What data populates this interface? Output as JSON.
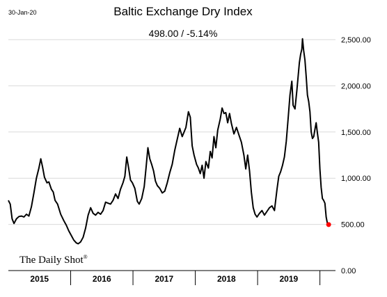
{
  "date_stamp": "30-Jan-20",
  "brand": "The Daily Shot",
  "brand_mark": "®",
  "colors": {
    "line": "#000000",
    "last_point": "#ff0000",
    "grid": "#d9d9d9"
  },
  "chart_data": {
    "type": "line",
    "title": "Baltic Exchange Dry Index",
    "subtitle": "498.00  /  -5.14%",
    "xlabel": "",
    "ylabel": "",
    "ylim": [
      0,
      2500
    ],
    "yticks": [
      "0.00",
      "500.00",
      "1,000.00",
      "1,500.00",
      "2,000.00",
      "2,500.00"
    ],
    "ytick_values": [
      0,
      500,
      1000,
      1500,
      2000,
      2500
    ],
    "y_axis_side": "right",
    "grid": "horizontal",
    "x_range": [
      2015.0,
      2020.25
    ],
    "year_labels": [
      "2015",
      "2016",
      "2017",
      "2018",
      "2019"
    ],
    "last_value": 498,
    "series": [
      {
        "points": [
          [
            2015.0,
            760
          ],
          [
            2015.03,
            720
          ],
          [
            2015.06,
            560
          ],
          [
            2015.09,
            510
          ],
          [
            2015.13,
            560
          ],
          [
            2015.17,
            585
          ],
          [
            2015.21,
            590
          ],
          [
            2015.25,
            580
          ],
          [
            2015.29,
            610
          ],
          [
            2015.33,
            590
          ],
          [
            2015.37,
            690
          ],
          [
            2015.41,
            840
          ],
          [
            2015.45,
            1000
          ],
          [
            2015.49,
            1110
          ],
          [
            2015.52,
            1210
          ],
          [
            2015.55,
            1120
          ],
          [
            2015.58,
            1010
          ],
          [
            2015.62,
            950
          ],
          [
            2015.65,
            960
          ],
          [
            2015.69,
            880
          ],
          [
            2015.72,
            850
          ],
          [
            2015.75,
            760
          ],
          [
            2015.79,
            720
          ],
          [
            2015.84,
            610
          ],
          [
            2015.89,
            540
          ],
          [
            2015.93,
            490
          ],
          [
            2015.97,
            430
          ],
          [
            2016.01,
            380
          ],
          [
            2016.05,
            330
          ],
          [
            2016.09,
            300
          ],
          [
            2016.12,
            290
          ],
          [
            2016.16,
            310
          ],
          [
            2016.2,
            360
          ],
          [
            2016.24,
            460
          ],
          [
            2016.28,
            600
          ],
          [
            2016.32,
            680
          ],
          [
            2016.36,
            620
          ],
          [
            2016.4,
            600
          ],
          [
            2016.44,
            630
          ],
          [
            2016.48,
            610
          ],
          [
            2016.52,
            650
          ],
          [
            2016.56,
            740
          ],
          [
            2016.6,
            730
          ],
          [
            2016.64,
            720
          ],
          [
            2016.68,
            760
          ],
          [
            2016.72,
            830
          ],
          [
            2016.76,
            780
          ],
          [
            2016.8,
            880
          ],
          [
            2016.84,
            950
          ],
          [
            2016.87,
            1020
          ],
          [
            2016.9,
            1230
          ],
          [
            2016.93,
            1110
          ],
          [
            2016.96,
            980
          ],
          [
            2016.99,
            950
          ],
          [
            2017.03,
            890
          ],
          [
            2017.07,
            750
          ],
          [
            2017.1,
            720
          ],
          [
            2017.14,
            780
          ],
          [
            2017.18,
            910
          ],
          [
            2017.21,
            1110
          ],
          [
            2017.24,
            1330
          ],
          [
            2017.27,
            1210
          ],
          [
            2017.3,
            1150
          ],
          [
            2017.33,
            1080
          ],
          [
            2017.36,
            970
          ],
          [
            2017.39,
            920
          ],
          [
            2017.43,
            890
          ],
          [
            2017.47,
            840
          ],
          [
            2017.51,
            860
          ],
          [
            2017.55,
            950
          ],
          [
            2017.59,
            1060
          ],
          [
            2017.63,
            1150
          ],
          [
            2017.67,
            1300
          ],
          [
            2017.71,
            1420
          ],
          [
            2017.75,
            1540
          ],
          [
            2017.79,
            1450
          ],
          [
            2017.82,
            1500
          ],
          [
            2017.85,
            1550
          ],
          [
            2017.89,
            1720
          ],
          [
            2017.92,
            1660
          ],
          [
            2017.95,
            1350
          ],
          [
            2017.98,
            1250
          ],
          [
            2018.02,
            1150
          ],
          [
            2018.05,
            1110
          ],
          [
            2018.08,
            1050
          ],
          [
            2018.11,
            1140
          ],
          [
            2018.14,
            1000
          ],
          [
            2018.17,
            1180
          ],
          [
            2018.21,
            1110
          ],
          [
            2018.24,
            1290
          ],
          [
            2018.27,
            1220
          ],
          [
            2018.3,
            1450
          ],
          [
            2018.33,
            1330
          ],
          [
            2018.36,
            1520
          ],
          [
            2018.4,
            1640
          ],
          [
            2018.43,
            1760
          ],
          [
            2018.46,
            1700
          ],
          [
            2018.49,
            1710
          ],
          [
            2018.52,
            1600
          ],
          [
            2018.55,
            1700
          ],
          [
            2018.58,
            1590
          ],
          [
            2018.62,
            1480
          ],
          [
            2018.66,
            1550
          ],
          [
            2018.7,
            1470
          ],
          [
            2018.74,
            1390
          ],
          [
            2018.78,
            1250
          ],
          [
            2018.81,
            1100
          ],
          [
            2018.84,
            1250
          ],
          [
            2018.87,
            1080
          ],
          [
            2018.9,
            850
          ],
          [
            2018.93,
            680
          ],
          [
            2018.96,
            610
          ],
          [
            2018.99,
            580
          ],
          [
            2019.03,
            620
          ],
          [
            2019.07,
            650
          ],
          [
            2019.11,
            600
          ],
          [
            2019.15,
            640
          ],
          [
            2019.19,
            680
          ],
          [
            2019.23,
            700
          ],
          [
            2019.27,
            650
          ],
          [
            2019.31,
            870
          ],
          [
            2019.34,
            1020
          ],
          [
            2019.37,
            1070
          ],
          [
            2019.4,
            1140
          ],
          [
            2019.43,
            1230
          ],
          [
            2019.46,
            1400
          ],
          [
            2019.49,
            1650
          ],
          [
            2019.52,
            1900
          ],
          [
            2019.55,
            2050
          ],
          [
            2019.57,
            1790
          ],
          [
            2019.6,
            1750
          ],
          [
            2019.63,
            1950
          ],
          [
            2019.65,
            2100
          ],
          [
            2019.67,
            2250
          ],
          [
            2019.69,
            2340
          ],
          [
            2019.71,
            2400
          ],
          [
            2019.72,
            2510
          ],
          [
            2019.74,
            2380
          ],
          [
            2019.76,
            2280
          ],
          [
            2019.78,
            2100
          ],
          [
            2019.8,
            1900
          ],
          [
            2019.82,
            1830
          ],
          [
            2019.84,
            1720
          ],
          [
            2019.86,
            1500
          ],
          [
            2019.88,
            1430
          ],
          [
            2019.9,
            1450
          ],
          [
            2019.92,
            1530
          ],
          [
            2019.94,
            1600
          ],
          [
            2019.96,
            1490
          ],
          [
            2019.98,
            1390
          ],
          [
            2020.0,
            1100
          ],
          [
            2020.02,
            900
          ],
          [
            2020.04,
            780
          ],
          [
            2020.06,
            760
          ],
          [
            2020.08,
            730
          ],
          [
            2020.1,
            580
          ],
          [
            2020.12,
            510
          ],
          [
            2020.14,
            498
          ]
        ]
      }
    ]
  }
}
